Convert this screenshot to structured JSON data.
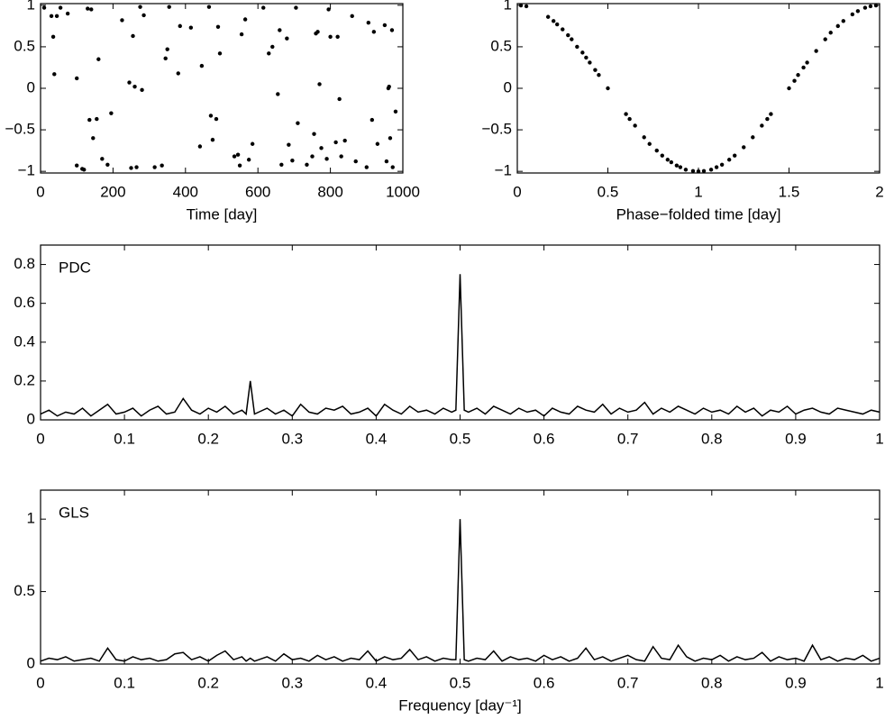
{
  "chart_data": [
    {
      "type": "scatter",
      "xlabel": "Time [day]",
      "xlim": [
        0,
        1000
      ],
      "xticks": [
        0,
        200,
        400,
        600,
        800,
        1000
      ],
      "ylim": [
        -1.02,
        1.02
      ],
      "yticks": [
        {
          "value": -1,
          "label": "−1"
        },
        {
          "value": -0.5,
          "label": "−0.5"
        },
        0,
        0.5,
        1
      ],
      "color": "#000",
      "x": [
        10,
        30,
        35,
        38,
        45,
        55,
        75,
        100,
        100,
        115,
        120,
        130,
        135,
        140,
        145,
        155,
        160,
        170,
        185,
        195,
        225,
        245,
        250,
        255,
        260,
        265,
        275,
        280,
        285,
        315,
        335,
        345,
        350,
        355,
        380,
        385,
        415,
        440,
        445,
        465,
        470,
        475,
        485,
        490,
        495,
        535,
        545,
        550,
        555,
        565,
        575,
        585,
        615,
        630,
        640,
        655,
        660,
        665,
        680,
        685,
        695,
        705,
        710,
        735,
        750,
        755,
        760,
        765,
        770,
        775,
        790,
        795,
        800,
        815,
        820,
        825,
        830,
        840,
        860,
        870,
        900,
        905,
        915,
        920,
        930,
        950,
        955,
        960,
        962,
        965,
        970,
        972,
        980
      ],
      "values": [
        0.97,
        0.87,
        0.62,
        0.17,
        0.87,
        0.97,
        0.9,
        0.12,
        -0.93,
        -0.97,
        -0.98,
        0.96,
        -0.38,
        0.95,
        -0.6,
        -0.37,
        0.35,
        -0.85,
        -0.92,
        -0.3,
        0.82,
        0.07,
        -0.96,
        0.63,
        0.02,
        -0.95,
        0.98,
        -0.02,
        0.88,
        -0.95,
        -0.93,
        0.36,
        0.47,
        0.98,
        0.18,
        0.75,
        0.73,
        -0.7,
        0.27,
        0.98,
        -0.33,
        -0.62,
        -0.37,
        0.74,
        0.42,
        -0.82,
        -0.8,
        -0.93,
        0.65,
        0.83,
        -0.86,
        -0.67,
        0.97,
        0.42,
        0.5,
        -0.07,
        0.7,
        -0.92,
        0.6,
        -0.68,
        -0.87,
        0.97,
        -0.42,
        -0.92,
        -0.82,
        -0.55,
        0.66,
        0.68,
        0.05,
        -0.72,
        -0.85,
        0.95,
        0.62,
        -0.65,
        0.62,
        -0.13,
        -0.82,
        -0.63,
        0.87,
        -0.88,
        -0.95,
        0.79,
        -0.38,
        0.68,
        -0.67,
        0.76,
        -0.88,
        0.0,
        0.02,
        -0.6,
        0.7,
        -0.95,
        -0.28
      ]
    },
    {
      "type": "scatter",
      "xlabel": "Phase−folded time [day]",
      "xlim": [
        0,
        2
      ],
      "xticks": [
        0,
        0.5,
        1,
        1.5,
        2
      ],
      "ylim": [
        -1.02,
        1.02
      ],
      "yticks": [
        {
          "value": -1,
          "label": "−1"
        },
        {
          "value": -0.5,
          "label": "−0.5"
        },
        0,
        0.5,
        1
      ],
      "color": "#000",
      "x": [
        0.02,
        0.05,
        0.17,
        0.2,
        0.22,
        0.25,
        0.28,
        0.3,
        0.33,
        0.36,
        0.38,
        0.4,
        0.43,
        0.45,
        0.5,
        0.6,
        0.62,
        0.65,
        0.7,
        0.73,
        0.77,
        0.8,
        0.83,
        0.85,
        0.88,
        0.9,
        0.93,
        0.97,
        1.0,
        1.03,
        1.07,
        1.1,
        1.13,
        1.17,
        1.2,
        1.25,
        1.3,
        1.35,
        1.38,
        1.4,
        1.5,
        1.53,
        1.55,
        1.58,
        1.6,
        1.65,
        1.7,
        1.73,
        1.77,
        1.8,
        1.85,
        1.88,
        1.92,
        1.95,
        1.98
      ],
      "values": [
        0.998,
        0.988,
        0.86,
        0.81,
        0.77,
        0.71,
        0.64,
        0.59,
        0.5,
        0.43,
        0.37,
        0.31,
        0.22,
        0.16,
        0,
        -0.31,
        -0.37,
        -0.45,
        -0.59,
        -0.67,
        -0.75,
        -0.81,
        -0.86,
        -0.89,
        -0.93,
        -0.95,
        -0.98,
        -0.996,
        -1,
        -0.996,
        -0.98,
        -0.95,
        -0.92,
        -0.86,
        -0.81,
        -0.71,
        -0.59,
        -0.45,
        -0.37,
        -0.31,
        0,
        0.09,
        0.16,
        0.25,
        0.31,
        0.45,
        0.59,
        0.67,
        0.75,
        0.81,
        0.89,
        0.93,
        0.97,
        0.988,
        0.998
      ]
    },
    {
      "type": "line",
      "annotation": "PDC",
      "xlim": [
        0,
        1
      ],
      "xticks": [
        0,
        0.1,
        0.2,
        0.3,
        0.4,
        0.5,
        0.6,
        0.7,
        0.8,
        0.9,
        1
      ],
      "ylim": [
        0,
        0.9
      ],
      "yticks": [
        0,
        0.2,
        0.4,
        0.6,
        0.8
      ],
      "color": "#000",
      "x": [
        0,
        0.01,
        0.02,
        0.03,
        0.04,
        0.05,
        0.06,
        0.07,
        0.08,
        0.09,
        0.1,
        0.11,
        0.12,
        0.13,
        0.14,
        0.15,
        0.16,
        0.17,
        0.18,
        0.19,
        0.2,
        0.21,
        0.22,
        0.23,
        0.24,
        0.245,
        0.25,
        0.255,
        0.26,
        0.27,
        0.28,
        0.29,
        0.3,
        0.31,
        0.32,
        0.33,
        0.34,
        0.35,
        0.36,
        0.37,
        0.38,
        0.39,
        0.4,
        0.41,
        0.42,
        0.43,
        0.44,
        0.45,
        0.46,
        0.47,
        0.48,
        0.49,
        0.495,
        0.5,
        0.505,
        0.51,
        0.52,
        0.53,
        0.54,
        0.55,
        0.56,
        0.57,
        0.58,
        0.59,
        0.6,
        0.61,
        0.62,
        0.63,
        0.64,
        0.65,
        0.66,
        0.67,
        0.68,
        0.69,
        0.7,
        0.71,
        0.72,
        0.73,
        0.74,
        0.75,
        0.76,
        0.77,
        0.78,
        0.79,
        0.8,
        0.81,
        0.82,
        0.83,
        0.84,
        0.85,
        0.86,
        0.87,
        0.88,
        0.89,
        0.9,
        0.91,
        0.92,
        0.93,
        0.94,
        0.95,
        0.96,
        0.97,
        0.98,
        0.99,
        1
      ],
      "values": [
        0.03,
        0.05,
        0.02,
        0.04,
        0.03,
        0.06,
        0.02,
        0.05,
        0.08,
        0.03,
        0.04,
        0.06,
        0.02,
        0.05,
        0.07,
        0.03,
        0.04,
        0.11,
        0.05,
        0.03,
        0.06,
        0.04,
        0.07,
        0.03,
        0.05,
        0.03,
        0.2,
        0.03,
        0.04,
        0.06,
        0.03,
        0.05,
        0.02,
        0.08,
        0.04,
        0.03,
        0.06,
        0.05,
        0.07,
        0.03,
        0.04,
        0.06,
        0.02,
        0.08,
        0.05,
        0.03,
        0.07,
        0.04,
        0.05,
        0.03,
        0.06,
        0.04,
        0.05,
        0.75,
        0.05,
        0.04,
        0.06,
        0.03,
        0.07,
        0.05,
        0.03,
        0.06,
        0.04,
        0.05,
        0.02,
        0.06,
        0.04,
        0.03,
        0.07,
        0.05,
        0.04,
        0.08,
        0.03,
        0.06,
        0.04,
        0.05,
        0.09,
        0.03,
        0.06,
        0.04,
        0.07,
        0.05,
        0.03,
        0.06,
        0.04,
        0.05,
        0.03,
        0.07,
        0.04,
        0.06,
        0.02,
        0.05,
        0.04,
        0.07,
        0.03,
        0.05,
        0.06,
        0.04,
        0.03,
        0.06,
        0.05,
        0.04,
        0.03,
        0.05,
        0.04
      ]
    },
    {
      "type": "line",
      "annotation": "GLS",
      "xlabel": "Frequency [day⁻¹]",
      "xlim": [
        0,
        1
      ],
      "xticks": [
        0,
        0.1,
        0.2,
        0.3,
        0.4,
        0.5,
        0.6,
        0.7,
        0.8,
        0.9,
        1
      ],
      "ylim": [
        0,
        1.2
      ],
      "yticks": [
        0,
        0.5,
        1
      ],
      "color": "#000",
      "x": [
        0,
        0.01,
        0.02,
        0.03,
        0.04,
        0.05,
        0.06,
        0.07,
        0.08,
        0.09,
        0.1,
        0.11,
        0.12,
        0.13,
        0.14,
        0.15,
        0.16,
        0.17,
        0.18,
        0.19,
        0.2,
        0.21,
        0.22,
        0.23,
        0.24,
        0.245,
        0.25,
        0.255,
        0.26,
        0.27,
        0.28,
        0.29,
        0.3,
        0.31,
        0.32,
        0.33,
        0.34,
        0.35,
        0.36,
        0.37,
        0.38,
        0.39,
        0.4,
        0.41,
        0.42,
        0.43,
        0.44,
        0.45,
        0.46,
        0.47,
        0.48,
        0.49,
        0.495,
        0.5,
        0.505,
        0.51,
        0.52,
        0.53,
        0.54,
        0.55,
        0.56,
        0.57,
        0.58,
        0.59,
        0.6,
        0.61,
        0.62,
        0.63,
        0.64,
        0.65,
        0.66,
        0.67,
        0.68,
        0.69,
        0.7,
        0.71,
        0.72,
        0.73,
        0.74,
        0.75,
        0.76,
        0.77,
        0.78,
        0.79,
        0.8,
        0.81,
        0.82,
        0.83,
        0.84,
        0.85,
        0.86,
        0.87,
        0.88,
        0.89,
        0.9,
        0.91,
        0.92,
        0.93,
        0.94,
        0.95,
        0.96,
        0.97,
        0.98,
        0.99,
        1
      ],
      "values": [
        0.02,
        0.04,
        0.03,
        0.05,
        0.02,
        0.03,
        0.04,
        0.02,
        0.11,
        0.03,
        0.02,
        0.05,
        0.03,
        0.04,
        0.02,
        0.03,
        0.07,
        0.08,
        0.03,
        0.05,
        0.02,
        0.06,
        0.09,
        0.03,
        0.05,
        0.02,
        0.04,
        0.02,
        0.03,
        0.05,
        0.02,
        0.07,
        0.03,
        0.04,
        0.02,
        0.06,
        0.03,
        0.05,
        0.02,
        0.04,
        0.03,
        0.09,
        0.02,
        0.05,
        0.03,
        0.04,
        0.1,
        0.03,
        0.05,
        0.02,
        0.04,
        0.03,
        0.03,
        1.0,
        0.03,
        0.02,
        0.04,
        0.03,
        0.09,
        0.02,
        0.05,
        0.03,
        0.04,
        0.02,
        0.06,
        0.03,
        0.05,
        0.02,
        0.04,
        0.11,
        0.03,
        0.05,
        0.02,
        0.04,
        0.06,
        0.03,
        0.02,
        0.12,
        0.04,
        0.03,
        0.13,
        0.05,
        0.02,
        0.04,
        0.03,
        0.06,
        0.02,
        0.05,
        0.03,
        0.04,
        0.08,
        0.02,
        0.05,
        0.03,
        0.04,
        0.02,
        0.13,
        0.03,
        0.05,
        0.02,
        0.04,
        0.03,
        0.06,
        0.02,
        0.04
      ]
    }
  ]
}
